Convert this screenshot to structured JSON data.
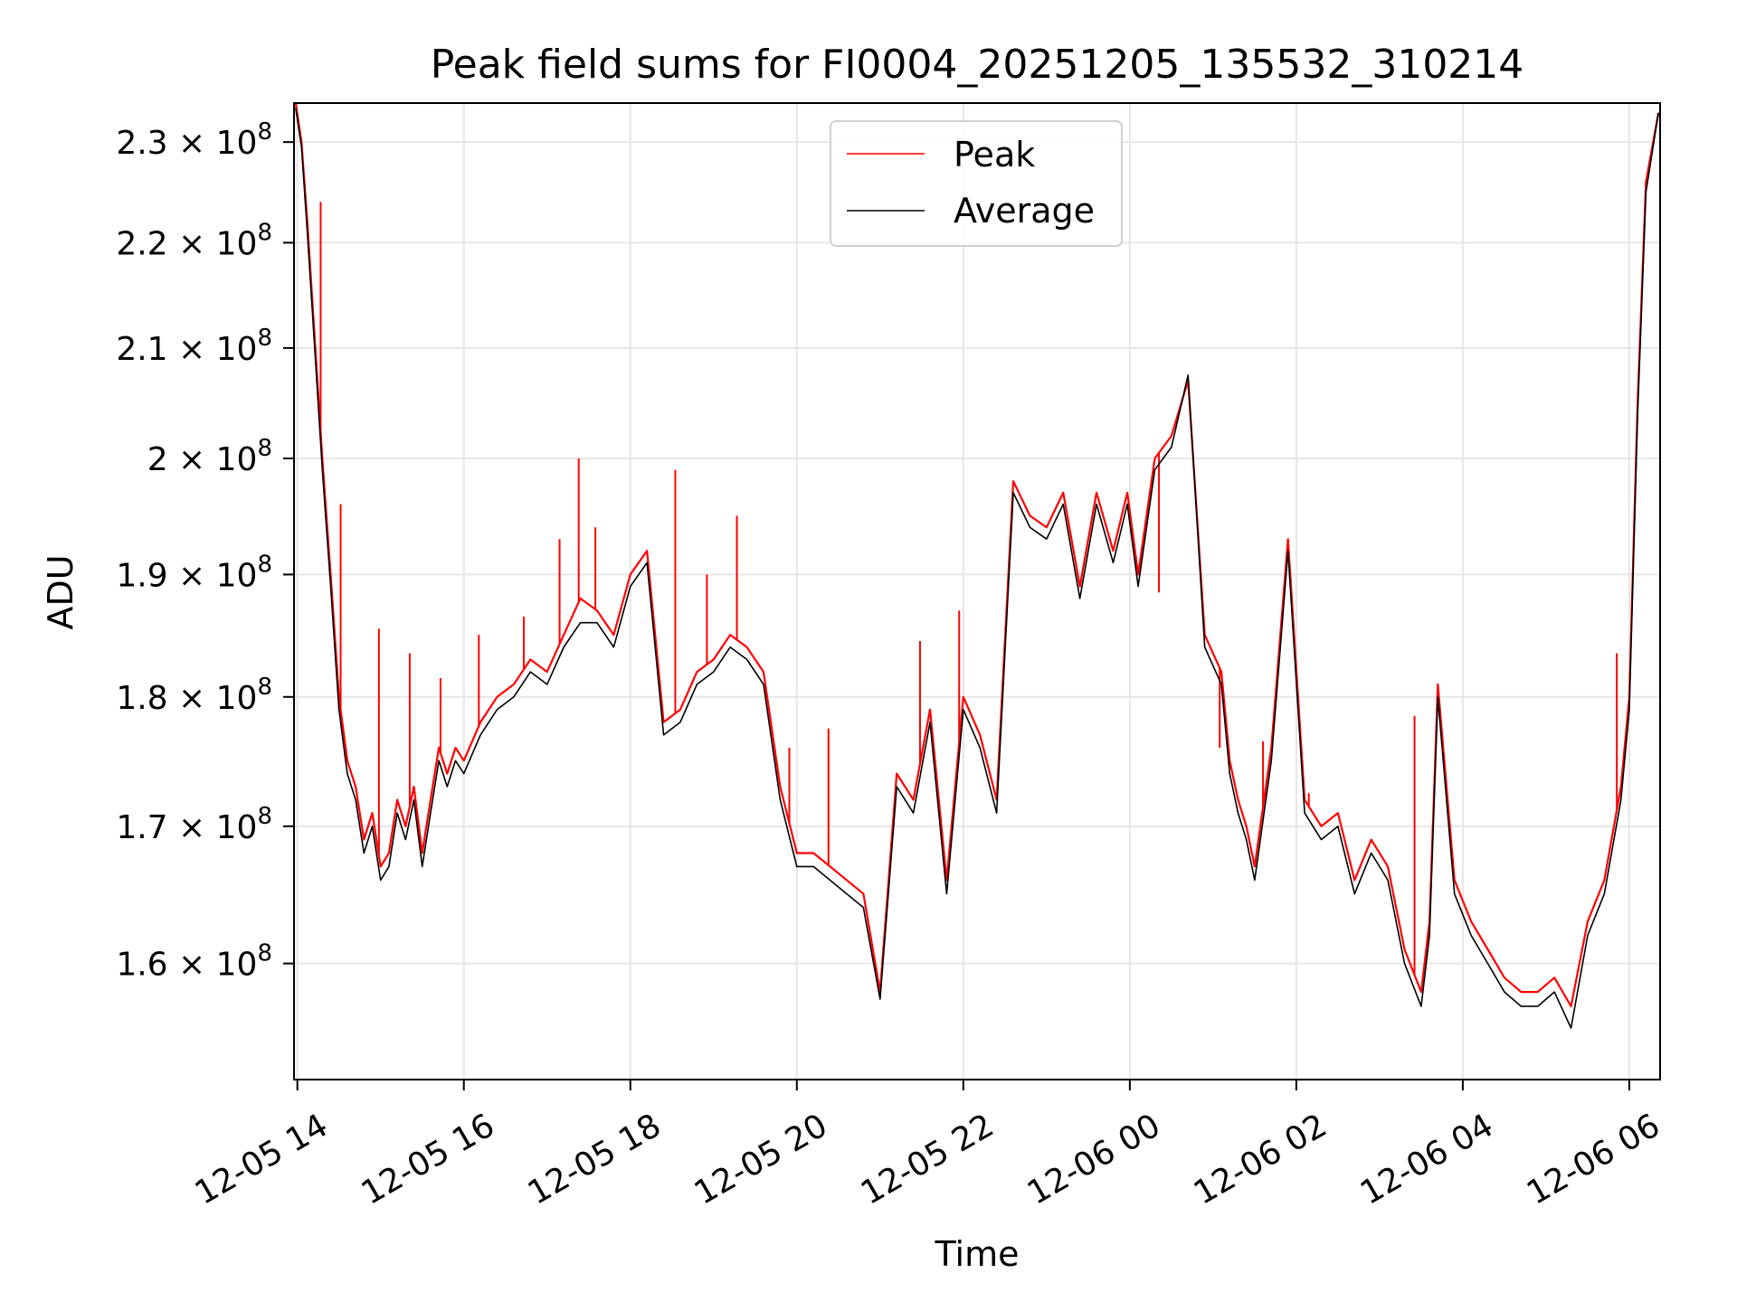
{
  "chart_data": {
    "type": "line",
    "title": "Peak field sums for FI0004_20251205_135532_310214",
    "xlabel": "Time",
    "ylabel": "ADU",
    "y_scale": "log",
    "x_unit": "hours since 12-05 00:00",
    "xlim": [
      13.96,
      30.37
    ],
    "ylim": [
      152000000,
      234000000
    ],
    "grid": true,
    "legend_position": "upper-center",
    "x_ticks": [
      {
        "value": 14,
        "label": "12-05 14"
      },
      {
        "value": 16,
        "label": "12-05 16"
      },
      {
        "value": 18,
        "label": "12-05 18"
      },
      {
        "value": 20,
        "label": "12-05 20"
      },
      {
        "value": 22,
        "label": "12-05 22"
      },
      {
        "value": 24,
        "label": "12-06 00"
      },
      {
        "value": 26,
        "label": "12-06 02"
      },
      {
        "value": 28,
        "label": "12-06 04"
      },
      {
        "value": 30,
        "label": "12-06 06"
      }
    ],
    "y_ticks": [
      {
        "value": 160000000,
        "mantissa": "1.6",
        "exponent": "8"
      },
      {
        "value": 170000000,
        "mantissa": "1.7",
        "exponent": "8"
      },
      {
        "value": 180000000,
        "mantissa": "1.8",
        "exponent": "8"
      },
      {
        "value": 190000000,
        "mantissa": "1.9",
        "exponent": "8"
      },
      {
        "value": 200000000,
        "mantissa": "2",
        "exponent": "8"
      },
      {
        "value": 210000000,
        "mantissa": "2.1",
        "exponent": "8"
      },
      {
        "value": 220000000,
        "mantissa": "2.2",
        "exponent": "8"
      },
      {
        "value": 230000000,
        "mantissa": "2.3",
        "exponent": "8"
      }
    ],
    "times_symbol": "×",
    "base": "10",
    "series": [
      {
        "name": "Peak",
        "color": "#ff0000",
        "x": [
          13.98,
          14.05,
          14.12,
          14.2,
          14.3,
          14.4,
          14.5,
          14.6,
          14.7,
          14.8,
          14.9,
          15.0,
          15.1,
          15.2,
          15.3,
          15.4,
          15.5,
          15.6,
          15.7,
          15.8,
          15.9,
          16.0,
          16.2,
          16.4,
          16.6,
          16.8,
          17.0,
          17.2,
          17.4,
          17.6,
          17.8,
          18.0,
          18.2,
          18.4,
          18.6,
          18.8,
          19.0,
          19.2,
          19.4,
          19.6,
          19.8,
          20.0,
          20.2,
          20.4,
          20.6,
          20.8,
          21.0,
          21.2,
          21.4,
          21.6,
          21.8,
          22.0,
          22.2,
          22.4,
          22.6,
          22.8,
          23.0,
          23.2,
          23.4,
          23.6,
          23.8,
          23.97,
          24.1,
          24.3,
          24.5,
          24.7,
          24.9,
          25.1,
          25.2,
          25.3,
          25.4,
          25.5,
          25.7,
          25.9,
          26.1,
          26.3,
          26.5,
          26.7,
          26.9,
          27.1,
          27.3,
          27.5,
          27.6,
          27.7,
          27.9,
          28.1,
          28.3,
          28.5,
          28.7,
          28.9,
          29.1,
          29.3,
          29.5,
          29.7,
          29.9,
          30.0,
          30.1,
          30.2,
          30.35
        ],
        "values": [
          234000000,
          230000000,
          222000000,
          212000000,
          200000000,
          190000000,
          180000000,
          175000000,
          173000000,
          169000000,
          171000000,
          167000000,
          168000000,
          172000000,
          170000000,
          173000000,
          168000000,
          172000000,
          176000000,
          174000000,
          176000000,
          175000000,
          178000000,
          180000000,
          181000000,
          183000000,
          182000000,
          185000000,
          188000000,
          187000000,
          185000000,
          190000000,
          192000000,
          178000000,
          179000000,
          182000000,
          183000000,
          185000000,
          184000000,
          182000000,
          173000000,
          168000000,
          168000000,
          167000000,
          166000000,
          165000000,
          158000000,
          174000000,
          172000000,
          179000000,
          166000000,
          180000000,
          177000000,
          172000000,
          198000000,
          195000000,
          194000000,
          197000000,
          189000000,
          197000000,
          192000000,
          197000000,
          190000000,
          200000000,
          202000000,
          207000000,
          185000000,
          182000000,
          175000000,
          172000000,
          170000000,
          167000000,
          176000000,
          193000000,
          172000000,
          170000000,
          171000000,
          166000000,
          169000000,
          167000000,
          161000000,
          158000000,
          163000000,
          181000000,
          166000000,
          163000000,
          161000000,
          159000000,
          158000000,
          158000000,
          159000000,
          157000000,
          163000000,
          166000000,
          173000000,
          180000000,
          205000000,
          226000000,
          233000000
        ],
        "spikes": [
          [
            14.28,
            224000000
          ],
          [
            14.52,
            196000000
          ],
          [
            14.98,
            185500000
          ],
          [
            15.35,
            183500000
          ],
          [
            15.72,
            181500000
          ],
          [
            16.18,
            185000000
          ],
          [
            16.72,
            186500000
          ],
          [
            17.15,
            193000000
          ],
          [
            17.38,
            200000000
          ],
          [
            17.58,
            194000000
          ],
          [
            18.54,
            199000000
          ],
          [
            18.92,
            190000000
          ],
          [
            19.28,
            195000000
          ],
          [
            19.91,
            176000000
          ],
          [
            20.38,
            177500000
          ],
          [
            21.48,
            184500000
          ],
          [
            21.95,
            187000000
          ],
          [
            24.35,
            188500000
          ],
          [
            25.08,
            176000000
          ],
          [
            25.6,
            176500000
          ],
          [
            26.15,
            172500000
          ],
          [
            27.42,
            178500000
          ],
          [
            29.85,
            183500000
          ]
        ]
      },
      {
        "name": "Average",
        "color": "#000000",
        "x": [
          13.98,
          14.05,
          14.12,
          14.2,
          14.3,
          14.4,
          14.5,
          14.6,
          14.7,
          14.8,
          14.9,
          15.0,
          15.1,
          15.2,
          15.3,
          15.4,
          15.5,
          15.6,
          15.7,
          15.8,
          15.9,
          16.0,
          16.2,
          16.4,
          16.6,
          16.8,
          17.0,
          17.2,
          17.4,
          17.6,
          17.8,
          18.0,
          18.2,
          18.4,
          18.6,
          18.8,
          19.0,
          19.2,
          19.4,
          19.6,
          19.8,
          20.0,
          20.2,
          20.4,
          20.6,
          20.8,
          21.0,
          21.2,
          21.4,
          21.6,
          21.8,
          22.0,
          22.2,
          22.4,
          22.6,
          22.8,
          23.0,
          23.2,
          23.4,
          23.6,
          23.8,
          23.97,
          24.1,
          24.3,
          24.5,
          24.7,
          24.9,
          25.1,
          25.2,
          25.3,
          25.4,
          25.5,
          25.7,
          25.9,
          26.1,
          26.3,
          26.5,
          26.7,
          26.9,
          27.1,
          27.3,
          27.5,
          27.6,
          27.7,
          27.9,
          28.1,
          28.3,
          28.5,
          28.7,
          28.9,
          29.1,
          29.3,
          29.5,
          29.7,
          29.9,
          30.0,
          30.1,
          30.2,
          30.35
        ],
        "values": [
          233500000,
          229500000,
          221000000,
          211000000,
          199000000,
          189000000,
          179000000,
          174000000,
          172000000,
          168000000,
          170000000,
          166000000,
          167000000,
          171000000,
          169000000,
          172000000,
          167000000,
          171000000,
          175000000,
          173000000,
          175000000,
          174000000,
          177000000,
          179000000,
          180000000,
          182000000,
          181000000,
          184000000,
          186000000,
          186000000,
          184000000,
          189000000,
          191000000,
          177000000,
          178000000,
          181000000,
          182000000,
          184000000,
          183000000,
          181000000,
          172000000,
          167000000,
          167000000,
          166000000,
          165000000,
          164000000,
          157500000,
          173000000,
          171000000,
          178000000,
          165000000,
          179000000,
          176000000,
          171000000,
          197000000,
          194000000,
          193000000,
          196000000,
          188000000,
          196000000,
          191000000,
          196000000,
          189000000,
          199000000,
          201000000,
          207500000,
          184000000,
          181000000,
          174000000,
          171000000,
          169000000,
          166000000,
          175000000,
          192000000,
          171000000,
          169000000,
          170000000,
          165000000,
          168000000,
          166000000,
          160000000,
          157000000,
          162000000,
          180000000,
          165000000,
          162000000,
          160000000,
          158000000,
          157000000,
          157000000,
          158000000,
          155500000,
          162000000,
          165000000,
          172000000,
          179000000,
          204000000,
          225000000,
          233000000
        ]
      }
    ]
  }
}
